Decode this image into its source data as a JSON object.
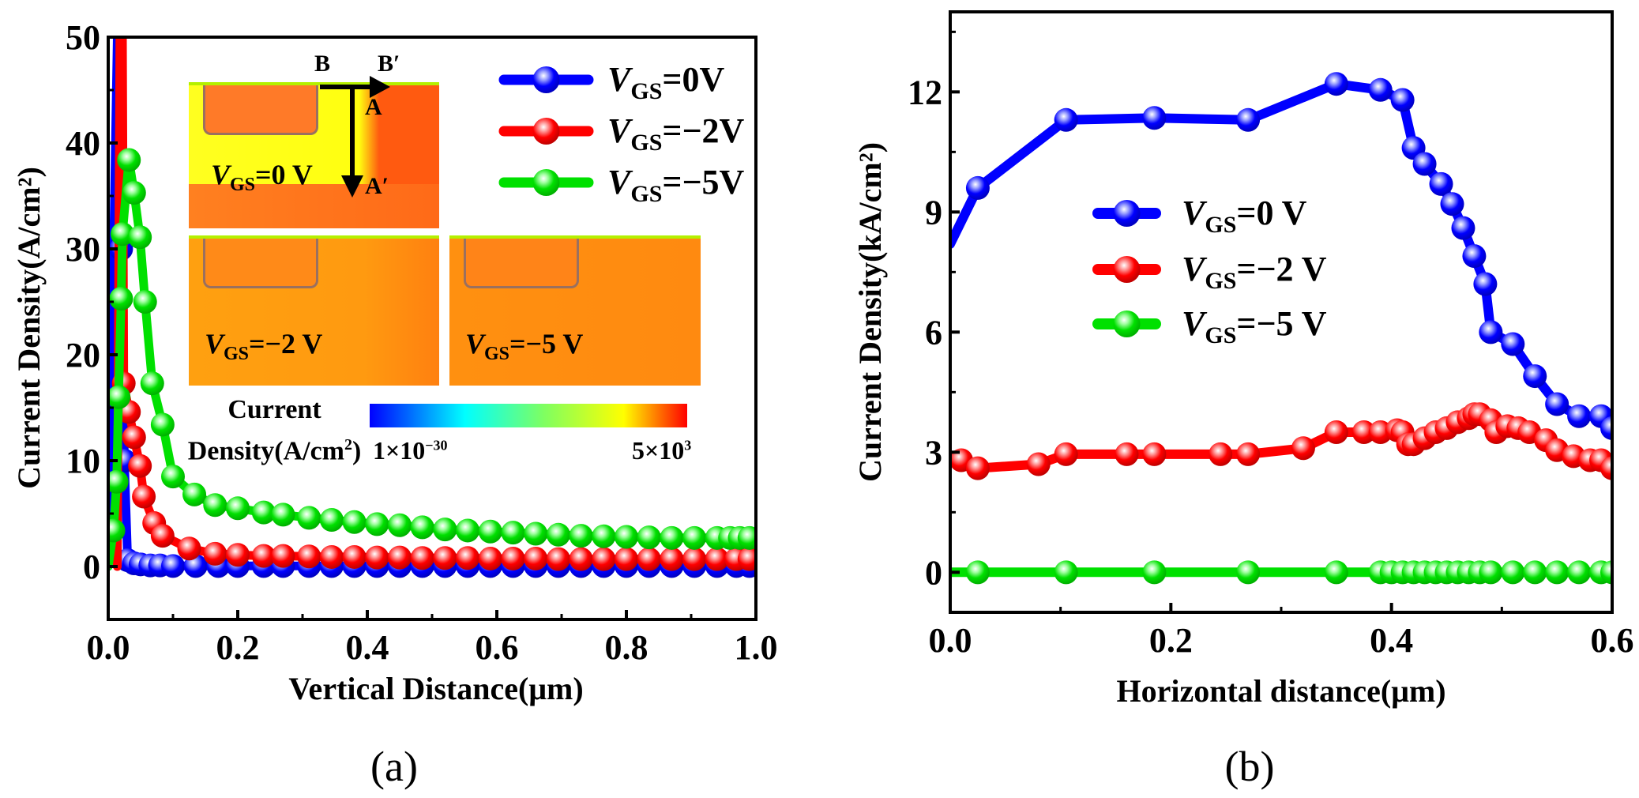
{
  "colors": {
    "blue": "#0000ff",
    "red": "#ff0000",
    "green": "#00e000"
  },
  "panel_labels": {
    "a": "(a)",
    "b": "(b)"
  },
  "inset": {
    "labels": {
      "B": "B",
      "B_prime": "B′",
      "A": "A",
      "A_prime": "A′"
    },
    "panels": [
      {
        "v": "V",
        "sub": "GS",
        "val": "=0 V"
      },
      {
        "v": "V",
        "sub": "GS",
        "val": "=−2 V"
      },
      {
        "v": "V",
        "sub": "GS",
        "val": "=−5 V"
      }
    ],
    "colorbar": {
      "title_line1": "Current",
      "title_line2": "Density(A/cm",
      "title_sup": "2",
      "title_end": ")",
      "min_label": "1×10",
      "min_exp": "−30",
      "max_label": "5×10",
      "max_exp": "3"
    }
  },
  "chart_data": [
    {
      "type": "line",
      "xlabel": "Vertical Distance(μm)",
      "ylabel": "Current Density(A/cm²)",
      "xlim": [
        0,
        1.0
      ],
      "ylim": [
        -5,
        50
      ],
      "xticks": [
        "0.0",
        "0.2",
        "0.4",
        "0.6",
        "0.8",
        "1.0"
      ],
      "yticks": [
        "0",
        "10",
        "20",
        "30",
        "40",
        "50"
      ],
      "grid": false,
      "legend": "top-right",
      "series": [
        {
          "name": "V_GS=0V",
          "legend_v": "V",
          "legend_sub": "GS",
          "legend_val": "=0V",
          "color": "#0000ff",
          "line_only": [
            [
              0.0,
              0
            ],
            [
              0.014,
              50
            ],
            [
              0.018,
              50
            ]
          ],
          "points": [
            [
              0.02,
              30
            ],
            [
              0.025,
              10
            ],
            [
              0.03,
              0.6
            ],
            [
              0.04,
              0.3
            ],
            [
              0.05,
              0.2
            ],
            [
              0.065,
              0.1
            ],
            [
              0.08,
              0.1
            ],
            [
              0.1,
              0.05
            ],
            [
              0.135,
              0.05
            ],
            [
              0.17,
              0.05
            ],
            [
              0.2,
              0.05
            ],
            [
              0.24,
              0.05
            ],
            [
              0.27,
              0.05
            ],
            [
              0.31,
              0.05
            ],
            [
              0.345,
              0.05
            ],
            [
              0.38,
              0.05
            ],
            [
              0.415,
              0.05
            ],
            [
              0.45,
              0.05
            ],
            [
              0.485,
              0.05
            ],
            [
              0.52,
              0.05
            ],
            [
              0.555,
              0.05
            ],
            [
              0.59,
              0.05
            ],
            [
              0.625,
              0.05
            ],
            [
              0.66,
              0.05
            ],
            [
              0.695,
              0.05
            ],
            [
              0.73,
              0.05
            ],
            [
              0.765,
              0.05
            ],
            [
              0.8,
              0.05
            ],
            [
              0.835,
              0.05
            ],
            [
              0.87,
              0.05
            ],
            [
              0.905,
              0.05
            ],
            [
              0.94,
              0.05
            ],
            [
              0.97,
              0.05
            ],
            [
              0.99,
              0.05
            ]
          ]
        },
        {
          "name": "V_GS=−2V",
          "legend_v": "V",
          "legend_sub": "GS",
          "legend_val": "=−2V",
          "color": "#ff0000",
          "line_only": [
            [
              0.014,
              0
            ],
            [
              0.018,
              50
            ],
            [
              0.022,
              50
            ]
          ],
          "points": [
            [
              0.024,
              17.3
            ],
            [
              0.032,
              14.6
            ],
            [
              0.04,
              12.2
            ],
            [
              0.049,
              9.5
            ],
            [
              0.055,
              6.6
            ],
            [
              0.071,
              4.1
            ],
            [
              0.084,
              2.9
            ],
            [
              0.125,
              1.7
            ],
            [
              0.165,
              1.2
            ],
            [
              0.2,
              1.1
            ],
            [
              0.24,
              1.0
            ],
            [
              0.27,
              1.0
            ],
            [
              0.31,
              0.95
            ],
            [
              0.345,
              0.9
            ],
            [
              0.38,
              0.9
            ],
            [
              0.415,
              0.85
            ],
            [
              0.45,
              0.85
            ],
            [
              0.485,
              0.8
            ],
            [
              0.52,
              0.8
            ],
            [
              0.555,
              0.8
            ],
            [
              0.59,
              0.75
            ],
            [
              0.625,
              0.75
            ],
            [
              0.66,
              0.75
            ],
            [
              0.695,
              0.7
            ],
            [
              0.73,
              0.7
            ],
            [
              0.765,
              0.7
            ],
            [
              0.8,
              0.7
            ],
            [
              0.835,
              0.7
            ],
            [
              0.87,
              0.7
            ],
            [
              0.905,
              0.7
            ],
            [
              0.94,
              0.7
            ],
            [
              0.97,
              0.7
            ],
            [
              0.99,
              0.7
            ]
          ]
        },
        {
          "name": "V_GS=−5V",
          "legend_v": "V",
          "legend_sub": "GS",
          "legend_val": "=−5V",
          "color": "#00e000",
          "line_only": [
            [
              0.0,
              0
            ]
          ],
          "points": [
            [
              0.008,
              3.4
            ],
            [
              0.013,
              8
            ],
            [
              0.016,
              16
            ],
            [
              0.02,
              25.3
            ],
            [
              0.022,
              31.4
            ],
            [
              0.032,
              38.4
            ],
            [
              0.04,
              35.3
            ],
            [
              0.049,
              31.1
            ],
            [
              0.057,
              25
            ],
            [
              0.068,
              17.3
            ],
            [
              0.084,
              13.4
            ],
            [
              0.1,
              8.5
            ],
            [
              0.133,
              6.8
            ],
            [
              0.165,
              5.8
            ],
            [
              0.2,
              5.5
            ],
            [
              0.24,
              5.1
            ],
            [
              0.27,
              4.9
            ],
            [
              0.31,
              4.6
            ],
            [
              0.345,
              4.4
            ],
            [
              0.38,
              4.2
            ],
            [
              0.415,
              4.0
            ],
            [
              0.45,
              3.9
            ],
            [
              0.485,
              3.7
            ],
            [
              0.52,
              3.5
            ],
            [
              0.555,
              3.4
            ],
            [
              0.59,
              3.3
            ],
            [
              0.625,
              3.2
            ],
            [
              0.66,
              3.1
            ],
            [
              0.695,
              3.0
            ],
            [
              0.73,
              2.9
            ],
            [
              0.765,
              2.85
            ],
            [
              0.8,
              2.8
            ],
            [
              0.835,
              2.75
            ],
            [
              0.87,
              2.7
            ],
            [
              0.905,
              2.7
            ],
            [
              0.94,
              2.7
            ],
            [
              0.96,
              2.7
            ],
            [
              0.975,
              2.7
            ],
            [
              0.99,
              2.7
            ]
          ]
        }
      ]
    },
    {
      "type": "line",
      "xlabel": "Horizontal distance(μm)",
      "ylabel": "Current Density(kA/cm²)",
      "xlim": [
        0,
        0.6
      ],
      "ylim": [
        -1,
        14
      ],
      "xticks": [
        "0.0",
        "0.2",
        "0.4",
        "0.6"
      ],
      "yticks": [
        "0",
        "3",
        "6",
        "9",
        "12"
      ],
      "grid": false,
      "legend": "center",
      "series": [
        {
          "name": "V_GS=0 V",
          "legend_v": "V",
          "legend_sub": "GS",
          "legend_val": "=0 V",
          "color": "#0000ff",
          "line_only": [
            [
              0.0,
              8.2
            ]
          ],
          "points": [
            [
              0.025,
              9.6
            ],
            [
              0.105,
              11.3
            ],
            [
              0.185,
              11.35
            ],
            [
              0.27,
              11.3
            ],
            [
              0.35,
              12.2
            ],
            [
              0.39,
              12.05
            ],
            [
              0.41,
              11.8
            ],
            [
              0.42,
              10.6
            ],
            [
              0.43,
              10.2
            ],
            [
              0.445,
              9.7
            ],
            [
              0.455,
              9.2
            ],
            [
              0.465,
              8.6
            ],
            [
              0.475,
              7.9
            ],
            [
              0.485,
              7.2
            ],
            [
              0.49,
              6.0
            ],
            [
              0.51,
              5.7
            ],
            [
              0.53,
              4.9
            ],
            [
              0.55,
              4.2
            ],
            [
              0.57,
              3.9
            ],
            [
              0.59,
              3.9
            ],
            [
              0.6,
              3.6
            ]
          ]
        },
        {
          "name": "V_GS=−2 V",
          "legend_v": "V",
          "legend_sub": "GS",
          "legend_val": "=−2 V",
          "color": "#ff0000",
          "line_only": [],
          "points": [
            [
              0.01,
              2.8
            ],
            [
              0.025,
              2.6
            ],
            [
              0.08,
              2.7
            ],
            [
              0.105,
              2.95
            ],
            [
              0.16,
              2.95
            ],
            [
              0.185,
              2.95
            ],
            [
              0.245,
              2.95
            ],
            [
              0.27,
              2.95
            ],
            [
              0.32,
              3.1
            ],
            [
              0.35,
              3.5
            ],
            [
              0.375,
              3.5
            ],
            [
              0.39,
              3.5
            ],
            [
              0.405,
              3.55
            ],
            [
              0.41,
              3.5
            ],
            [
              0.415,
              3.2
            ],
            [
              0.42,
              3.2
            ],
            [
              0.43,
              3.35
            ],
            [
              0.44,
              3.5
            ],
            [
              0.45,
              3.6
            ],
            [
              0.46,
              3.75
            ],
            [
              0.47,
              3.85
            ],
            [
              0.475,
              3.95
            ],
            [
              0.48,
              3.95
            ],
            [
              0.49,
              3.8
            ],
            [
              0.495,
              3.5
            ],
            [
              0.505,
              3.65
            ],
            [
              0.515,
              3.6
            ],
            [
              0.525,
              3.5
            ],
            [
              0.54,
              3.3
            ],
            [
              0.55,
              3.05
            ],
            [
              0.565,
              2.9
            ],
            [
              0.58,
              2.8
            ],
            [
              0.59,
              2.8
            ],
            [
              0.6,
              2.6
            ]
          ]
        },
        {
          "name": "V_GS=−5 V",
          "legend_v": "V",
          "legend_sub": "GS",
          "legend_val": "=−5 V",
          "color": "#00e000",
          "line_only": [
            [
              0.0,
              0
            ]
          ],
          "points": [
            [
              0.025,
              0
            ],
            [
              0.105,
              0
            ],
            [
              0.185,
              0
            ],
            [
              0.27,
              0
            ],
            [
              0.35,
              0
            ],
            [
              0.39,
              0
            ],
            [
              0.4,
              0
            ],
            [
              0.41,
              0
            ],
            [
              0.42,
              0
            ],
            [
              0.43,
              0
            ],
            [
              0.44,
              0
            ],
            [
              0.45,
              0
            ],
            [
              0.46,
              0
            ],
            [
              0.47,
              0
            ],
            [
              0.48,
              0
            ],
            [
              0.49,
              0
            ],
            [
              0.51,
              0
            ],
            [
              0.53,
              0
            ],
            [
              0.55,
              0
            ],
            [
              0.57,
              0
            ],
            [
              0.59,
              0
            ],
            [
              0.6,
              0
            ]
          ]
        }
      ]
    }
  ]
}
